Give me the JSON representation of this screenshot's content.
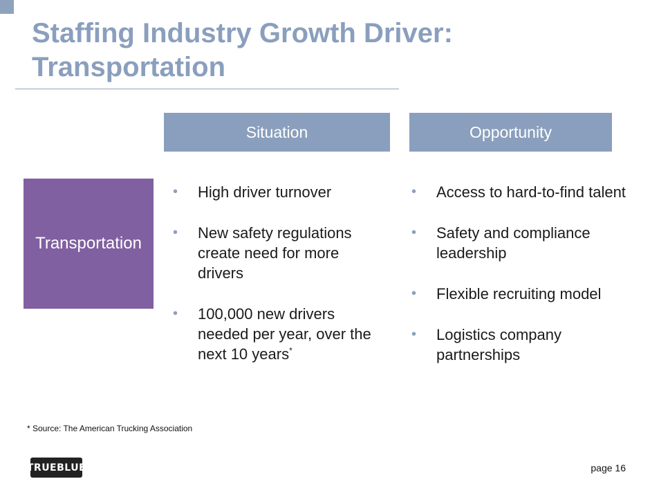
{
  "slide": {
    "title": "Staffing Industry Growth Driver: Transportation",
    "page_label": "page 16"
  },
  "table": {
    "row_label": "Transportation",
    "columns": [
      {
        "header": "Situation",
        "bullets": [
          {
            "text": "High driver turnover",
            "note": ""
          },
          {
            "text": "New safety regulations create need for more drivers",
            "note": ""
          },
          {
            "text": "100,000 new drivers needed per year, over the next 10 years",
            "note": "*"
          }
        ]
      },
      {
        "header": "Opportunity",
        "bullets": [
          {
            "text": "Access to hard-to-find talent",
            "note": ""
          },
          {
            "text": "Safety and compliance leadership",
            "note": ""
          },
          {
            "text": "Flexible recruiting model",
            "note": ""
          },
          {
            "text": "Logistics company partnerships",
            "note": ""
          }
        ]
      }
    ]
  },
  "footnote": "* Source: The American Trucking Association",
  "logo": {
    "text": "TRUEBLUE"
  },
  "colors": {
    "title": "#8a9fbd",
    "header_fill": "#8a9fbd",
    "row_label_fill": "#8060a0",
    "bullet": "#8a9fbd"
  }
}
